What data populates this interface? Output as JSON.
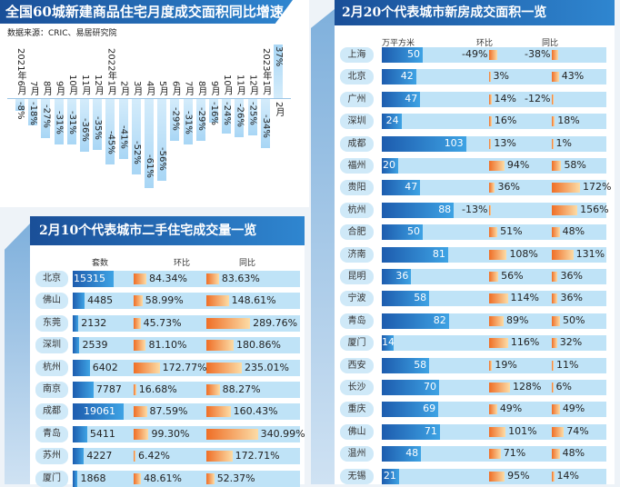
{
  "colors": {
    "title_bar": "#1a4f98",
    "row_bg": "#bfe3f7",
    "count_bar": "#1d5cae",
    "pct_bar": "#ef6e26",
    "month_bar": "#a8d6f5"
  },
  "chart_data": [
    {
      "type": "bar",
      "title": "全国60城新建商品住宅月度成交面积同比增速",
      "source": "数据来源：CRIC、易居研究院",
      "categories": [
        "2021年6月",
        "7月",
        "8月",
        "9月",
        "10月",
        "11月",
        "12月",
        "2022年1月",
        "2月",
        "3月",
        "4月",
        "5月",
        "6月",
        "7月",
        "8月",
        "9月",
        "10月",
        "11月",
        "12月",
        "2023年1月",
        "2月"
      ],
      "values": [
        -8,
        -18,
        -27,
        -31,
        -31,
        -36,
        -35,
        -45,
        -41,
        -52,
        -61,
        -56,
        -29,
        -31,
        -29,
        -16,
        -24,
        -26,
        -25,
        -34,
        37
      ],
      "data_labels": [
        "-8%",
        "-18%",
        "-27%",
        "-31%",
        "-31%",
        "-36%",
        "-35%",
        "-45%",
        "-41%",
        "-52%",
        "-61%",
        "-56%",
        "-29%",
        "-31%",
        "-29%",
        "-16%",
        "-24%",
        "-26%",
        "-25%",
        "-34%",
        "37%"
      ],
      "unit": "%"
    },
    {
      "type": "bar",
      "title": "2月10个代表城市二手住宅成交量一览",
      "headers": [
        "套数",
        "环比",
        "同比"
      ],
      "categories": [
        "北京",
        "佛山",
        "东莞",
        "深圳",
        "杭州",
        "南京",
        "成都",
        "青岛",
        "苏州",
        "厦门"
      ],
      "series": [
        {
          "name": "套数",
          "values": [
            15315,
            4485,
            2132,
            2539,
            6402,
            7787,
            19061,
            5411,
            4227,
            1868
          ]
        },
        {
          "name": "环比",
          "values": [
            84.34,
            58.99,
            45.73,
            81.1,
            172.77,
            16.68,
            87.59,
            99.3,
            6.42,
            48.61
          ],
          "labels": [
            "84.34%",
            "58.99%",
            "45.73%",
            "81.10%",
            "172.77%",
            "16.68%",
            "87.59%",
            "99.30%",
            "6.42%",
            "48.61%"
          ]
        },
        {
          "name": "同比",
          "values": [
            83.63,
            148.61,
            289.76,
            180.86,
            235.01,
            88.27,
            160.43,
            340.99,
            172.71,
            52.37
          ],
          "labels": [
            "83.63%",
            "148.61%",
            "289.76%",
            "180.86%",
            "235.01%",
            "88.27%",
            "160.43%",
            "340.99%",
            "172.71%",
            "52.37%"
          ]
        }
      ]
    },
    {
      "type": "bar",
      "title": "2月20个代表城市新房成交面积一览",
      "headers": [
        "万平方米",
        "环比",
        "同比"
      ],
      "categories": [
        "上海",
        "北京",
        "广州",
        "深圳",
        "成都",
        "福州",
        "贵阳",
        "杭州",
        "合肥",
        "济南",
        "昆明",
        "宁波",
        "青岛",
        "厦门",
        "西安",
        "长沙",
        "重庆",
        "佛山",
        "温州",
        "无锡"
      ],
      "series": [
        {
          "name": "万平方米",
          "values": [
            50,
            42,
            47,
            24,
            103,
            20,
            47,
            88,
            50,
            81,
            36,
            58,
            82,
            14,
            58,
            70,
            69,
            71,
            48,
            21
          ]
        },
        {
          "name": "环比",
          "values": [
            -49,
            3,
            14,
            16,
            13,
            94,
            36,
            -13,
            51,
            108,
            56,
            114,
            89,
            116,
            19,
            128,
            49,
            101,
            71,
            95
          ],
          "labels": [
            "-49%",
            "3%",
            "14%",
            "16%",
            "13%",
            "94%",
            "36%",
            "-13%",
            "51%",
            "108%",
            "56%",
            "114%",
            "89%",
            "116%",
            "19%",
            "128%",
            "49%",
            "101%",
            "71%",
            "95%"
          ]
        },
        {
          "name": "同比",
          "values": [
            -38,
            43,
            -12,
            18,
            1,
            58,
            172,
            156,
            48,
            131,
            36,
            36,
            50,
            32,
            11,
            6,
            49,
            74,
            48,
            14
          ],
          "labels": [
            "-38%",
            "43%",
            "-12%",
            "18%",
            "1%",
            "58%",
            "172%",
            "156%",
            "48%",
            "131%",
            "36%",
            "36%",
            "50%",
            "32%",
            "11%",
            "6%",
            "49%",
            "74%",
            "48%",
            "14%"
          ]
        }
      ]
    }
  ]
}
